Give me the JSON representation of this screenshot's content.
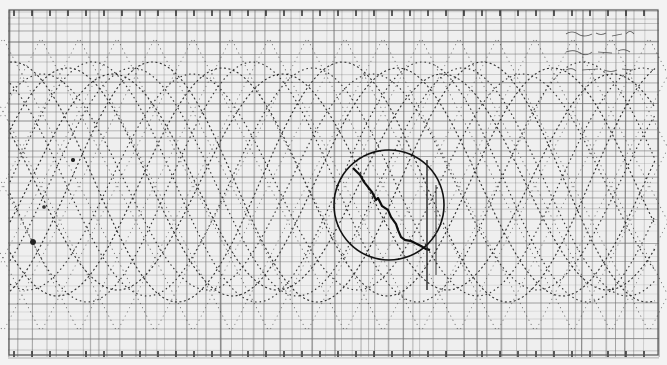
{
  "sheet": {
    "background": "#f2f2f2",
    "ink": "#1a1a1a",
    "grid_color": "#6e6e6e",
    "curve_color": "#2e2e2e",
    "circle_color": "#111111"
  },
  "corner_note": {
    "lines": [
      "",
      "",
      ""
    ]
  }
}
